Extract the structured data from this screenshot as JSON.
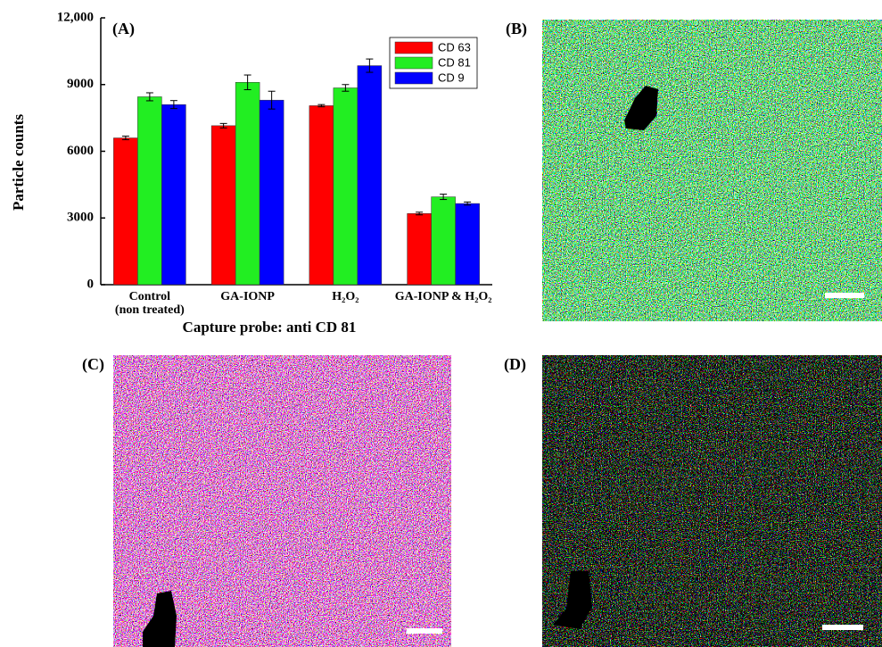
{
  "chart_data": {
    "type": "bar",
    "title": "(A)",
    "y_label": "Particle counts",
    "x_label": "Capture probe: anti CD 81",
    "categories": [
      "Control (non treated)",
      "GA-IONP",
      "H₂O₂",
      "GA-IONP & H₂O₂"
    ],
    "series": [
      {
        "name": "CD 63",
        "color": "#ff0000",
        "values": [
          6600,
          7150,
          8050,
          3200
        ],
        "errors": [
          80,
          100,
          50,
          60
        ]
      },
      {
        "name": "CD 81",
        "color": "#22ee22",
        "values": [
          8450,
          9100,
          8850,
          3950
        ],
        "errors": [
          180,
          330,
          150,
          120
        ]
      },
      {
        "name": "CD 9",
        "color": "#0000ff",
        "values": [
          8100,
          8300,
          9850,
          3650
        ],
        "errors": [
          180,
          400,
          300,
          70
        ]
      }
    ],
    "ylim": [
      0,
      12000
    ],
    "yticks": [
      0,
      3000,
      6000,
      9000,
      {
        "value": 12000,
        "label": "12,000"
      }
    ],
    "legend": "upper right",
    "grid": false
  },
  "panels": [
    "(B)",
    "(C)",
    "(D)"
  ]
}
